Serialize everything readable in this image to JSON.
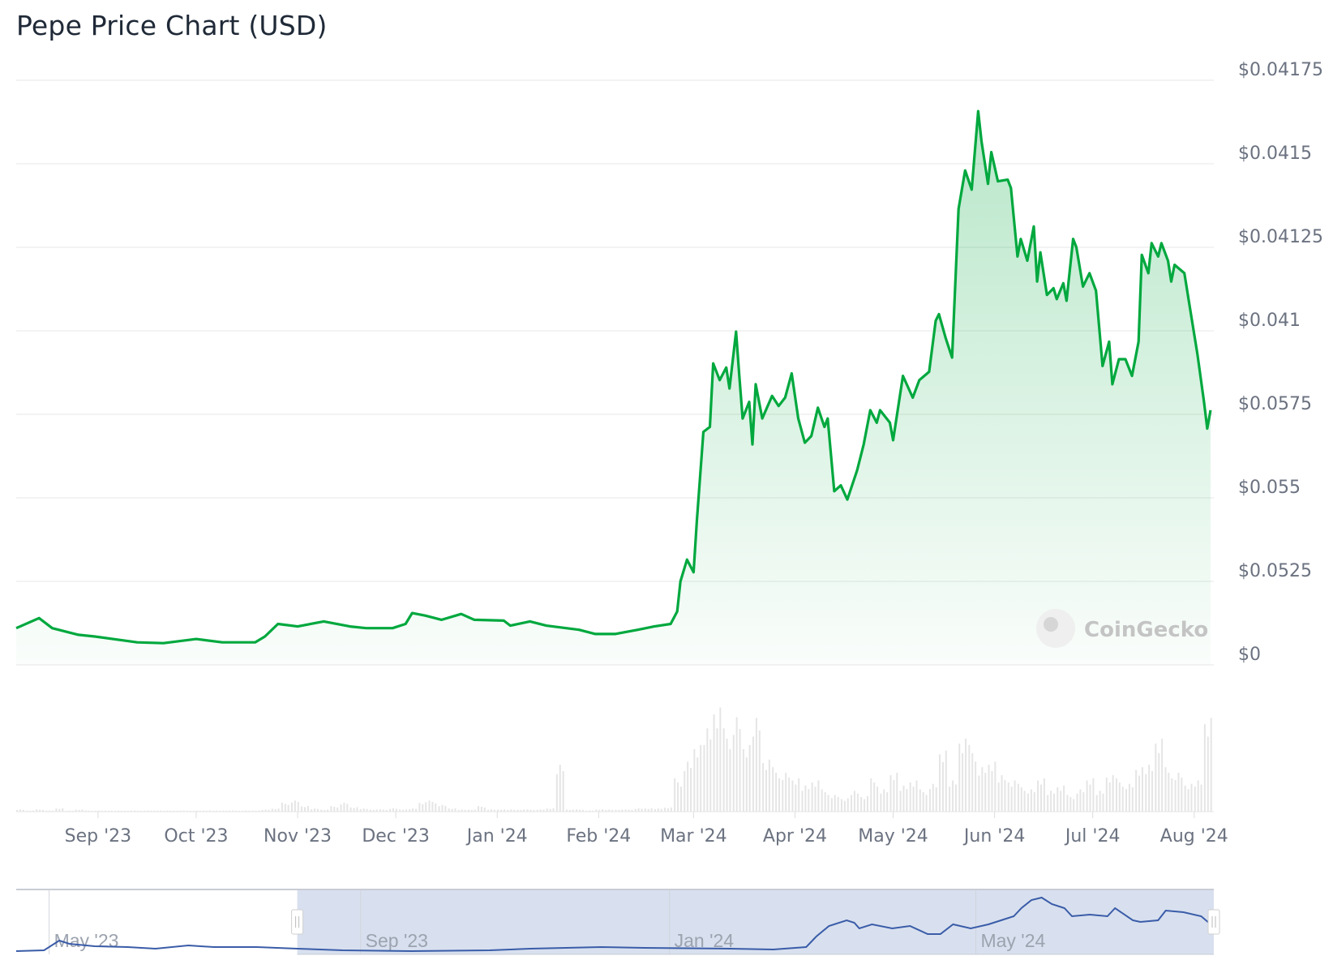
{
  "title": "Pepe Price Chart (USD)",
  "watermark": "CoinGecko",
  "colors": {
    "price_line": "#00a83e",
    "area_fill": "#00a83e",
    "volume_bar": "#e5e5e5",
    "navigator_line": "#3a5ca8",
    "navigator_selection": "#d8e0ef",
    "grid": "#ececec"
  },
  "chart_data": {
    "type": "line",
    "title": "Pepe Price Chart (USD)",
    "x_range": [
      "2023-08-07",
      "2024-08-07"
    ],
    "x_ticks": [
      {
        "date": "2023-09-01",
        "label": "Sep '23"
      },
      {
        "date": "2023-10-01",
        "label": "Oct '23"
      },
      {
        "date": "2023-11-01",
        "label": "Nov '23"
      },
      {
        "date": "2023-12-01",
        "label": "Dec '23"
      },
      {
        "date": "2024-01-01",
        "label": "Jan '24"
      },
      {
        "date": "2024-02-01",
        "label": "Feb '24"
      },
      {
        "date": "2024-03-01",
        "label": "Mar '24"
      },
      {
        "date": "2024-04-01",
        "label": "Apr '24"
      },
      {
        "date": "2024-05-01",
        "label": "May '24"
      },
      {
        "date": "2024-06-01",
        "label": "Jun '24"
      },
      {
        "date": "2024-07-01",
        "label": "Jul '24"
      },
      {
        "date": "2024-08-01",
        "label": "Aug '24"
      }
    ],
    "y_ticks": [
      {
        "value": 0,
        "label": "$0"
      },
      {
        "value": 1,
        "label": "$0.0525"
      },
      {
        "value": 2,
        "label": "$0.055"
      },
      {
        "value": 3,
        "label": "$0.0575"
      },
      {
        "value": 4,
        "label": "$0.041"
      },
      {
        "value": 5,
        "label": "$0.04125"
      },
      {
        "value": 6,
        "label": "$0.0415"
      },
      {
        "value": 7,
        "label": "$0.04175"
      }
    ],
    "ylim": [
      0,
      7
    ],
    "grid": true,
    "axis_side": "right",
    "price": [
      [
        "2023-08-07",
        0.44
      ],
      [
        "2023-08-14",
        0.56
      ],
      [
        "2023-08-18",
        0.44
      ],
      [
        "2023-08-26",
        0.36
      ],
      [
        "2023-08-31",
        0.34
      ],
      [
        "2023-09-13",
        0.27
      ],
      [
        "2023-09-21",
        0.26
      ],
      [
        "2023-10-01",
        0.31
      ],
      [
        "2023-10-09",
        0.27
      ],
      [
        "2023-10-19",
        0.27
      ],
      [
        "2023-10-22",
        0.34
      ],
      [
        "2023-10-26",
        0.49
      ],
      [
        "2023-11-01",
        0.46
      ],
      [
        "2023-11-09",
        0.52
      ],
      [
        "2023-11-17",
        0.46
      ],
      [
        "2023-11-22",
        0.44
      ],
      [
        "2023-11-30",
        0.44
      ],
      [
        "2023-12-04",
        0.49
      ],
      [
        "2023-12-06",
        0.62
      ],
      [
        "2023-12-10",
        0.59
      ],
      [
        "2023-12-15",
        0.54
      ],
      [
        "2023-12-21",
        0.61
      ],
      [
        "2023-12-25",
        0.54
      ],
      [
        "2024-01-03",
        0.53
      ],
      [
        "2024-01-05",
        0.47
      ],
      [
        "2024-01-11",
        0.52
      ],
      [
        "2024-01-16",
        0.47
      ],
      [
        "2024-01-26",
        0.42
      ],
      [
        "2024-01-31",
        0.37
      ],
      [
        "2024-02-06",
        0.37
      ],
      [
        "2024-02-13",
        0.42
      ],
      [
        "2024-02-18",
        0.46
      ],
      [
        "2024-02-23",
        0.49
      ],
      [
        "2024-02-25",
        0.64
      ],
      [
        "2024-02-26",
        1.0
      ],
      [
        "2024-02-28",
        1.26
      ],
      [
        "2024-03-01",
        1.11
      ],
      [
        "2024-03-02",
        1.72
      ],
      [
        "2024-03-04",
        2.79
      ],
      [
        "2024-03-06",
        2.85
      ],
      [
        "2024-03-07",
        3.61
      ],
      [
        "2024-03-09",
        3.41
      ],
      [
        "2024-03-11",
        3.56
      ],
      [
        "2024-03-12",
        3.31
      ],
      [
        "2024-03-14",
        3.99
      ],
      [
        "2024-03-15",
        3.46
      ],
      [
        "2024-03-16",
        2.95
      ],
      [
        "2024-03-18",
        3.15
      ],
      [
        "2024-03-19",
        2.64
      ],
      [
        "2024-03-20",
        3.36
      ],
      [
        "2024-03-22",
        2.95
      ],
      [
        "2024-03-25",
        3.22
      ],
      [
        "2024-03-27",
        3.1
      ],
      [
        "2024-03-29",
        3.2
      ],
      [
        "2024-03-31",
        3.49
      ],
      [
        "2024-04-02",
        2.95
      ],
      [
        "2024-04-04",
        2.66
      ],
      [
        "2024-04-06",
        2.74
      ],
      [
        "2024-04-08",
        3.08
      ],
      [
        "2024-04-10",
        2.85
      ],
      [
        "2024-04-11",
        2.95
      ],
      [
        "2024-04-13",
        2.08
      ],
      [
        "2024-04-15",
        2.15
      ],
      [
        "2024-04-17",
        1.98
      ],
      [
        "2024-04-20",
        2.33
      ],
      [
        "2024-04-22",
        2.64
      ],
      [
        "2024-04-24",
        3.05
      ],
      [
        "2024-04-26",
        2.9
      ],
      [
        "2024-04-27",
        3.05
      ],
      [
        "2024-04-30",
        2.9
      ],
      [
        "2024-05-01",
        2.69
      ],
      [
        "2024-05-04",
        3.46
      ],
      [
        "2024-05-07",
        3.2
      ],
      [
        "2024-05-09",
        3.41
      ],
      [
        "2024-05-12",
        3.51
      ],
      [
        "2024-05-14",
        4.12
      ],
      [
        "2024-05-15",
        4.2
      ],
      [
        "2024-05-17",
        3.92
      ],
      [
        "2024-05-19",
        3.68
      ],
      [
        "2024-05-21",
        5.46
      ],
      [
        "2024-05-23",
        5.92
      ],
      [
        "2024-05-25",
        5.69
      ],
      [
        "2024-05-27",
        6.63
      ],
      [
        "2024-05-28",
        6.27
      ],
      [
        "2024-05-30",
        5.76
      ],
      [
        "2024-05-31",
        6.14
      ],
      [
        "2024-06-02",
        5.79
      ],
      [
        "2024-06-05",
        5.81
      ],
      [
        "2024-06-06",
        5.71
      ],
      [
        "2024-06-08",
        4.89
      ],
      [
        "2024-06-09",
        5.1
      ],
      [
        "2024-06-11",
        4.84
      ],
      [
        "2024-06-13",
        5.25
      ],
      [
        "2024-06-14",
        4.59
      ],
      [
        "2024-06-15",
        4.94
      ],
      [
        "2024-06-17",
        4.43
      ],
      [
        "2024-06-19",
        4.51
      ],
      [
        "2024-06-20",
        4.38
      ],
      [
        "2024-06-22",
        4.57
      ],
      [
        "2024-06-23",
        4.36
      ],
      [
        "2024-06-25",
        5.1
      ],
      [
        "2024-06-26",
        5.0
      ],
      [
        "2024-06-28",
        4.53
      ],
      [
        "2024-06-30",
        4.69
      ],
      [
        "2024-07-02",
        4.48
      ],
      [
        "2024-07-04",
        3.58
      ],
      [
        "2024-07-06",
        3.87
      ],
      [
        "2024-07-07",
        3.36
      ],
      [
        "2024-07-09",
        3.66
      ],
      [
        "2024-07-11",
        3.66
      ],
      [
        "2024-07-13",
        3.46
      ],
      [
        "2024-07-15",
        3.87
      ],
      [
        "2024-07-16",
        4.91
      ],
      [
        "2024-07-18",
        4.69
      ],
      [
        "2024-07-19",
        5.05
      ],
      [
        "2024-07-21",
        4.89
      ],
      [
        "2024-07-22",
        5.05
      ],
      [
        "2024-07-24",
        4.84
      ],
      [
        "2024-07-25",
        4.59
      ],
      [
        "2024-07-26",
        4.79
      ],
      [
        "2024-07-29",
        4.69
      ],
      [
        "2024-07-31",
        4.2
      ],
      [
        "2024-08-02",
        3.72
      ],
      [
        "2024-08-04",
        3.15
      ],
      [
        "2024-08-05",
        2.83
      ],
      [
        "2024-08-06",
        3.05
      ]
    ],
    "volume": {
      "start": "2023-08-07",
      "step_days": 3,
      "ylim": [
        0,
        100
      ],
      "values": [
        2,
        1,
        2,
        1,
        3,
        1,
        2,
        1,
        1,
        1,
        1,
        1,
        1,
        1,
        1,
        1,
        1,
        1,
        1,
        1,
        1,
        1,
        1,
        1,
        1,
        2,
        3,
        8,
        10,
        5,
        3,
        2,
        5,
        8,
        4,
        3,
        2,
        2,
        3,
        2,
        3,
        9,
        10,
        6,
        3,
        2,
        2,
        5,
        2,
        2,
        2,
        2,
        2,
        2,
        3,
        45,
        2,
        2,
        1,
        2,
        2,
        2,
        2,
        3,
        3,
        3,
        4,
        30,
        45,
        60,
        80,
        100,
        75,
        85,
        60,
        90,
        50,
        40,
        35,
        30,
        25,
        30,
        20,
        15,
        12,
        20,
        15,
        30,
        20,
        35,
        25,
        30,
        20,
        25,
        55,
        30,
        70,
        60,
        40,
        45,
        35,
        30,
        25,
        20,
        30,
        20,
        25,
        15,
        20,
        30,
        20,
        35,
        30,
        25,
        40,
        45,
        70,
        40,
        35,
        25,
        30,
        90
      ]
    },
    "navigator": {
      "x_range": [
        "2023-04-18",
        "2024-08-03"
      ],
      "selection": [
        "2023-08-07",
        "2024-08-03"
      ],
      "ticks": [
        {
          "date": "2023-05-01",
          "label": "May '23"
        },
        {
          "date": "2023-09-01",
          "label": "Sep '23"
        },
        {
          "date": "2024-01-01",
          "label": "Jan '24"
        },
        {
          "date": "2024-05-01",
          "label": "May '24"
        }
      ],
      "series": [
        [
          "2023-04-18",
          0.0
        ],
        [
          "2023-04-29",
          0.1
        ],
        [
          "2023-05-05",
          1.3
        ],
        [
          "2023-05-09",
          0.9
        ],
        [
          "2023-05-19",
          0.6
        ],
        [
          "2023-06-01",
          0.5
        ],
        [
          "2023-06-12",
          0.3
        ],
        [
          "2023-06-25",
          0.7
        ],
        [
          "2023-07-05",
          0.5
        ],
        [
          "2023-07-22",
          0.5
        ],
        [
          "2023-08-07",
          0.3
        ],
        [
          "2023-08-25",
          0.1
        ],
        [
          "2023-09-21",
          0.0
        ],
        [
          "2023-10-22",
          0.1
        ],
        [
          "2023-11-07",
          0.3
        ],
        [
          "2023-12-05",
          0.5
        ],
        [
          "2023-12-22",
          0.4
        ],
        [
          "2024-01-25",
          0.3
        ],
        [
          "2024-02-11",
          0.2
        ],
        [
          "2024-02-24",
          0.5
        ],
        [
          "2024-02-28",
          1.8
        ],
        [
          "2024-03-04",
          3.1
        ],
        [
          "2024-03-11",
          3.8
        ],
        [
          "2024-03-14",
          3.5
        ],
        [
          "2024-03-16",
          2.8
        ],
        [
          "2024-03-21",
          3.3
        ],
        [
          "2024-03-29",
          2.8
        ],
        [
          "2024-04-05",
          3.1
        ],
        [
          "2024-04-12",
          2.1
        ],
        [
          "2024-04-17",
          2.1
        ],
        [
          "2024-04-22",
          3.3
        ],
        [
          "2024-04-29",
          2.8
        ],
        [
          "2024-05-06",
          3.3
        ],
        [
          "2024-05-11",
          3.8
        ],
        [
          "2024-05-16",
          4.3
        ],
        [
          "2024-05-19",
          5.3
        ],
        [
          "2024-05-23",
          6.3
        ],
        [
          "2024-05-27",
          6.6
        ],
        [
          "2024-05-31",
          5.8
        ],
        [
          "2024-06-05",
          5.3
        ],
        [
          "2024-06-08",
          4.3
        ],
        [
          "2024-06-15",
          4.5
        ],
        [
          "2024-06-22",
          4.3
        ],
        [
          "2024-06-25",
          5.3
        ],
        [
          "2024-07-02",
          3.8
        ],
        [
          "2024-07-05",
          3.6
        ],
        [
          "2024-07-12",
          3.8
        ],
        [
          "2024-07-15",
          5.0
        ],
        [
          "2024-07-22",
          4.8
        ],
        [
          "2024-07-29",
          4.3
        ],
        [
          "2024-08-01",
          3.5
        ]
      ]
    }
  }
}
